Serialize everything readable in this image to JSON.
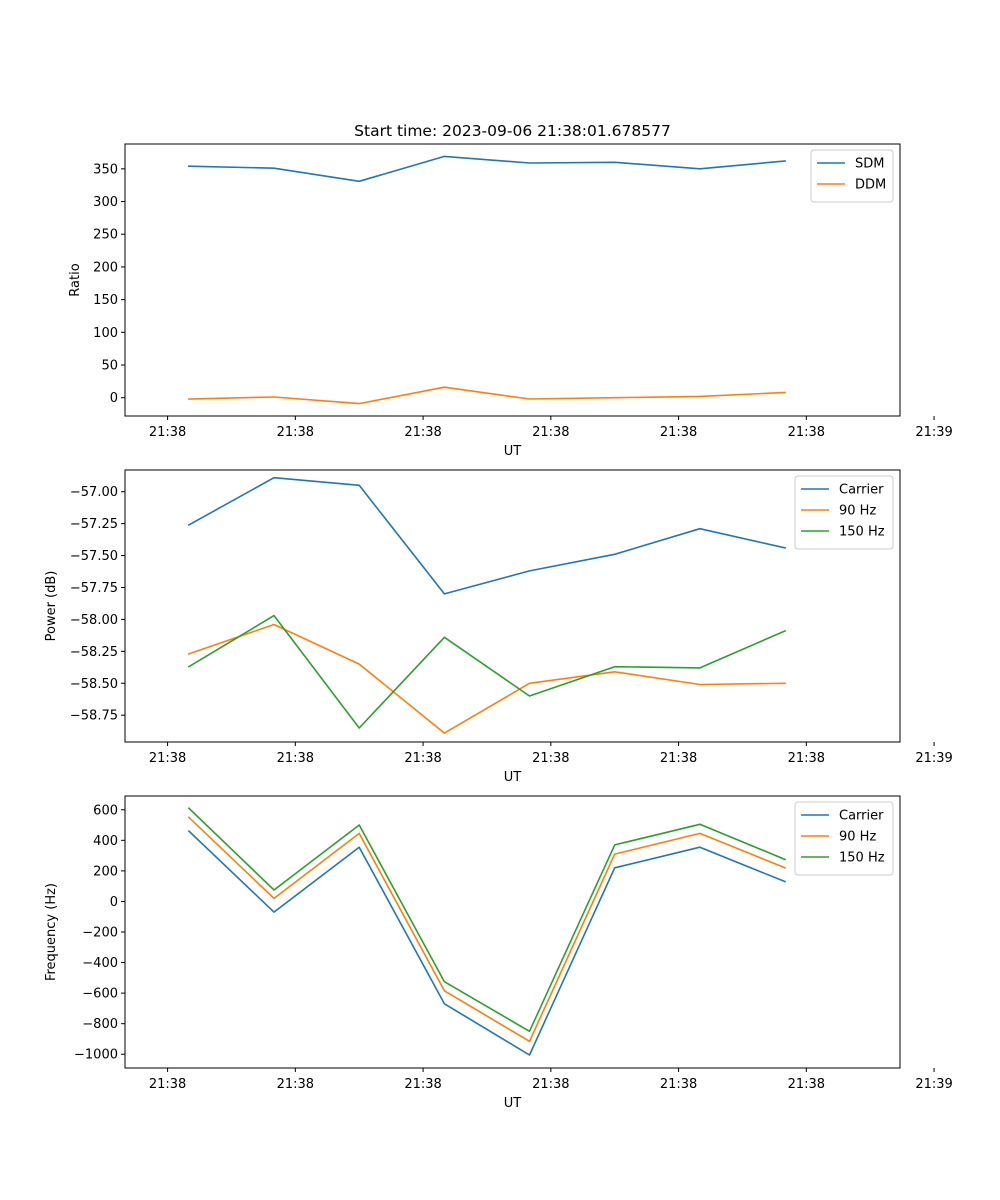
{
  "figure": {
    "title": "Start time: 2023-09-06 21:38:01.678577"
  },
  "colors": {
    "blue": "#1f77b4",
    "orange": "#ff7f0e",
    "green": "#2ca02c"
  },
  "chart_data": [
    {
      "type": "line",
      "title": "Start time: 2023-09-06 21:38:01.678577",
      "xlabel": "UT",
      "ylabel": "Ratio",
      "legend_position": "top-right",
      "grid": false,
      "xlim": [
        -0.5,
        8.6
      ],
      "ylim": [
        -28,
        388
      ],
      "x": [
        0.25,
        1.25,
        2.25,
        3.25,
        4.25,
        5.25,
        6.25,
        7.25
      ],
      "xticks": [
        0,
        1.5,
        3,
        4.5,
        6,
        7.5,
        9
      ],
      "xtick_labels": [
        "21:38",
        "21:38",
        "21:38",
        "21:38",
        "21:38",
        "21:38",
        "21:39"
      ],
      "yticks": [
        0,
        50,
        100,
        150,
        200,
        250,
        300,
        350
      ],
      "ytick_labels": [
        "0",
        "50",
        "100",
        "150",
        "200",
        "250",
        "300",
        "350"
      ],
      "series": [
        {
          "name": "SDM",
          "color": "#1f77b4",
          "values": [
            354,
            351,
            331,
            369,
            359,
            360,
            350,
            362
          ]
        },
        {
          "name": "DDM",
          "color": "#ff7f0e",
          "values": [
            -2,
            1,
            -9,
            16,
            -2,
            0,
            2,
            8
          ]
        }
      ]
    },
    {
      "type": "line",
      "title": "",
      "xlabel": "UT",
      "ylabel": "Power (dB)",
      "legend_position": "top-right",
      "grid": false,
      "xlim": [
        -0.5,
        8.6
      ],
      "ylim": [
        -58.96,
        -56.83
      ],
      "x": [
        0.25,
        1.25,
        2.25,
        3.25,
        4.25,
        5.25,
        6.25,
        7.25
      ],
      "xticks": [
        0,
        1.5,
        3,
        4.5,
        6,
        7.5,
        9
      ],
      "xtick_labels": [
        "21:38",
        "21:38",
        "21:38",
        "21:38",
        "21:38",
        "21:38",
        "21:39"
      ],
      "yticks": [
        -57.0,
        -57.25,
        -57.5,
        -57.75,
        -58.0,
        -58.25,
        -58.5,
        -58.75
      ],
      "ytick_labels": [
        "−57.00",
        "−57.25",
        "−57.50",
        "−57.75",
        "−58.00",
        "−58.25",
        "−58.50",
        "−58.75"
      ],
      "series": [
        {
          "name": "Carrier",
          "color": "#1f77b4",
          "values": [
            -57.26,
            -56.89,
            -56.95,
            -57.8,
            -57.62,
            -57.49,
            -57.29,
            -57.44
          ]
        },
        {
          "name": "90 Hz",
          "color": "#ff7f0e",
          "values": [
            -58.27,
            -58.04,
            -58.35,
            -58.89,
            -58.5,
            -58.41,
            -58.51,
            -58.5
          ]
        },
        {
          "name": "150 Hz",
          "color": "#2ca02c",
          "values": [
            -58.37,
            -57.97,
            -58.85,
            -58.14,
            -58.6,
            -58.37,
            -58.38,
            -58.09
          ]
        }
      ]
    },
    {
      "type": "line",
      "title": "",
      "xlabel": "UT",
      "ylabel": "Frequency (Hz)",
      "legend_position": "top-right",
      "grid": false,
      "xlim": [
        -0.5,
        8.6
      ],
      "ylim": [
        -1090,
        690
      ],
      "x": [
        0.25,
        1.25,
        2.25,
        3.25,
        4.25,
        5.25,
        6.25,
        7.25
      ],
      "xticks": [
        0,
        1.5,
        3,
        4.5,
        6,
        7.5,
        9
      ],
      "xtick_labels": [
        "21:38",
        "21:38",
        "21:38",
        "21:38",
        "21:38",
        "21:38",
        "21:39"
      ],
      "yticks": [
        600,
        400,
        200,
        0,
        -200,
        -400,
        -600,
        -800,
        -1000
      ],
      "ytick_labels": [
        "600",
        "400",
        "200",
        "0",
        "−200",
        "−400",
        "−600",
        "−800",
        "−1000"
      ],
      "series": [
        {
          "name": "Carrier",
          "color": "#1f77b4",
          "values": [
            460,
            -70,
            355,
            -670,
            -1005,
            220,
            355,
            130
          ]
        },
        {
          "name": "90 Hz",
          "color": "#ff7f0e",
          "values": [
            550,
            20,
            445,
            -585,
            -915,
            310,
            445,
            220
          ]
        },
        {
          "name": "150 Hz",
          "color": "#2ca02c",
          "values": [
            610,
            75,
            500,
            -525,
            -850,
            370,
            505,
            275
          ]
        }
      ]
    }
  ]
}
